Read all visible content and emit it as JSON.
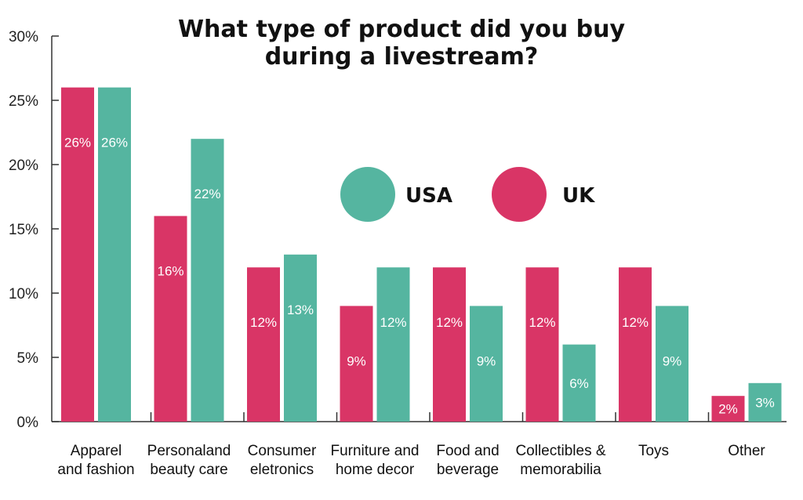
{
  "chart_data": {
    "type": "bar",
    "title_lines": [
      "What type of product did you buy",
      "during a livestream?"
    ],
    "categories": [
      [
        "Apparel",
        "and fashion"
      ],
      [
        "Personaland",
        "beauty care"
      ],
      [
        "Consumer",
        "eletronics"
      ],
      [
        "Furniture and",
        "home decor"
      ],
      [
        "Food and",
        "beverage"
      ],
      [
        "Collectibles &",
        "memorabilia"
      ],
      [
        "Toys"
      ],
      [
        "Other"
      ]
    ],
    "series": [
      {
        "name": "UK",
        "color": "#d93566",
        "values": [
          26,
          16,
          12,
          9,
          12,
          12,
          12,
          2
        ],
        "labels": [
          "26%",
          "16%",
          "12%",
          "9%",
          "12%",
          "12%",
          "12%",
          "2%"
        ]
      },
      {
        "name": "USA",
        "color": "#55b5a0",
        "values": [
          26,
          22,
          13,
          12,
          9,
          6,
          9,
          3
        ],
        "labels": [
          "26%",
          "22%",
          "13%",
          "12%",
          "9%",
          "6%",
          "9%",
          "3%"
        ]
      }
    ],
    "legend": [
      {
        "name": "USA",
        "color": "#55b5a0"
      },
      {
        "name": "UK",
        "color": "#d93566"
      }
    ],
    "yticks": [
      "0%",
      "5%",
      "10%",
      "15%",
      "20%",
      "25%",
      "30%"
    ],
    "ylim": [
      0,
      30
    ],
    "ystep": 5,
    "grid": false,
    "legend_position": "center-right"
  }
}
